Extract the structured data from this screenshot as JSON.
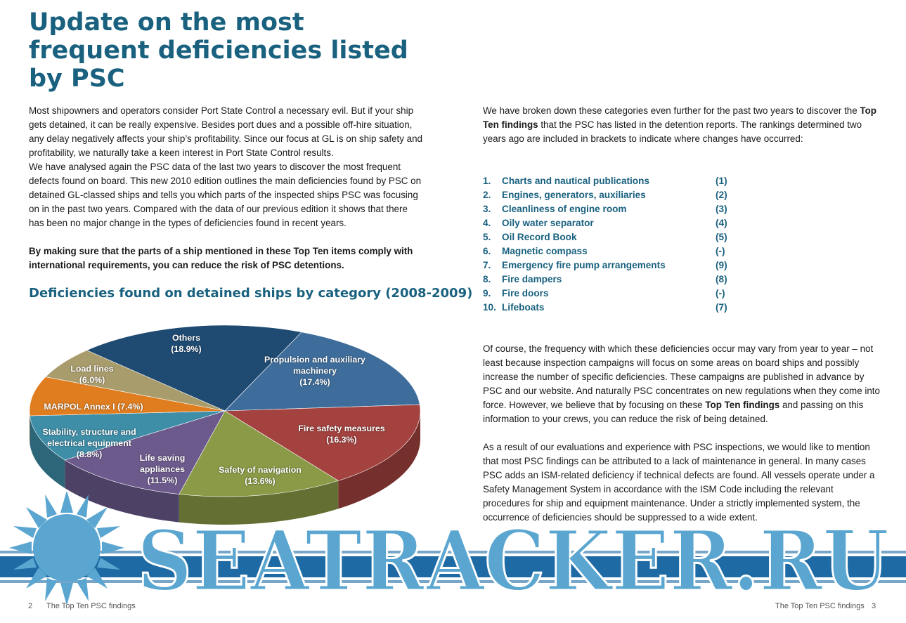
{
  "header": {
    "title": "Update on the most frequent deficiencies listed by PSC"
  },
  "left": {
    "paragraphs": [
      "Most shipowners and operators consider Port State Control a necessary evil. But if your ship gets detained, it can be really expensive. Besides port dues and a possible off-hire situation, any delay negatively affects your ship’s profitability. Since our focus at GL is on ship safety and profitability, we naturally take a keen interest in Port State Control results.",
      "We have analysed again the PSC data of the last two years to discover the most frequent defects found on board. This new 2010 edition outlines the main deficiencies found by PSC on detained GL-classed ships and tells you which parts of the inspected ships PSC was focusing on in the past two years. Compared with the data of our previous edition it shows that there has been no major change in the types of deficiencies found in recent years.",
      "By making sure that the parts of a ship mentioned in these Top Ten items comply with international requirements, you can reduce the risk of PSC detentions."
    ]
  },
  "chart_data": {
    "type": "pie",
    "title": "Deficiencies found on detained ships by category (2008-2009)",
    "categories": [
      "Others",
      "Propulsion and auxiliary machinery",
      "Fire safety measures",
      "Safety of navigation",
      "Life saving appliances",
      "Stability, structure and electrical equipment",
      "MARPOL Annex I",
      "Load lines"
    ],
    "values": [
      18.9,
      17.4,
      16.3,
      13.6,
      11.5,
      8.8,
      7.4,
      6.0
    ],
    "value_labels": [
      "(18.9%)",
      "(17.4%)",
      "(16.3%)",
      "(13.6%)",
      "(11.5%)",
      "(8.8%)",
      "(7.4%)",
      "(6.0%)"
    ],
    "colors": [
      "#1f4a72",
      "#3f6d9b",
      "#a3423f",
      "#8a9a47",
      "#6c5a8d",
      "#3f8ea8",
      "#e07d1e",
      "#a99c6c"
    ]
  },
  "right": {
    "intro": [
      "We have broken down these categories even further for the past two years to discover the ",
      "Top Ten findings",
      " that the PSC has listed in the detention reports. The rankings determined two years ago are included in brackets to indicate where changes have occurred:"
    ],
    "list": [
      {
        "number": "1.",
        "label": "Charts and nautical publications",
        "previous": "(1)"
      },
      {
        "number": "2.",
        "label": "Engines, generators, auxiliaries",
        "previous": "(2)"
      },
      {
        "number": "3.",
        "label": "Cleanliness of engine room",
        "previous": "(3)"
      },
      {
        "number": "4.",
        "label": "Oily water separator",
        "previous": "(4)"
      },
      {
        "number": "5.",
        "label": "Oil Record Book",
        "previous": "(5)"
      },
      {
        "number": "6.",
        "label": "Magnetic compass",
        "previous": "(-)"
      },
      {
        "number": "7.",
        "label": "Emergency fire pump arrangements",
        "previous": "(9)"
      },
      {
        "number": "8.",
        "label": "Fire dampers",
        "previous": "(8)"
      },
      {
        "number": "9.",
        "label": "Fire doors",
        "previous": "(-)"
      },
      {
        "number": "10.",
        "label": "Lifeboats",
        "previous": "(7)"
      }
    ],
    "paragraph2": [
      "Of course, the frequency with which these deficiencies occur may vary from year to year – not least because inspection campaigns will focus on some areas on board ships and possibly increase the number of specific deficiencies. These campaigns are published in advance by PSC and our website. And naturally PSC concentrates on new regulations when they come into force. However, we believe that by focusing on these ",
      "Top Ten findings",
      " and passing on this information to your crews, you can reduce the risk of being detained."
    ],
    "paragraph3": "As a result of our evaluations and experience with PSC inspections, we would like to mention that most PSC findings can be attributed to a lack of maintenance in general. In many cases PSC adds an ISM-related deficiency if technical defects are found. All vessels operate under a Safety Management System in accordance with the ISM Code including the relevant procedures for ship and equipment maintenance. Under a strictly implemented system, the occurrence of deficiencies should be suppressed to a wide extent."
  },
  "footer": {
    "left_page": "2",
    "left_text": "The Top Ten PSC findings",
    "right_text": "The Top Ten PSC findings",
    "right_page": "3"
  },
  "watermark": "SEATRACKER.RU"
}
